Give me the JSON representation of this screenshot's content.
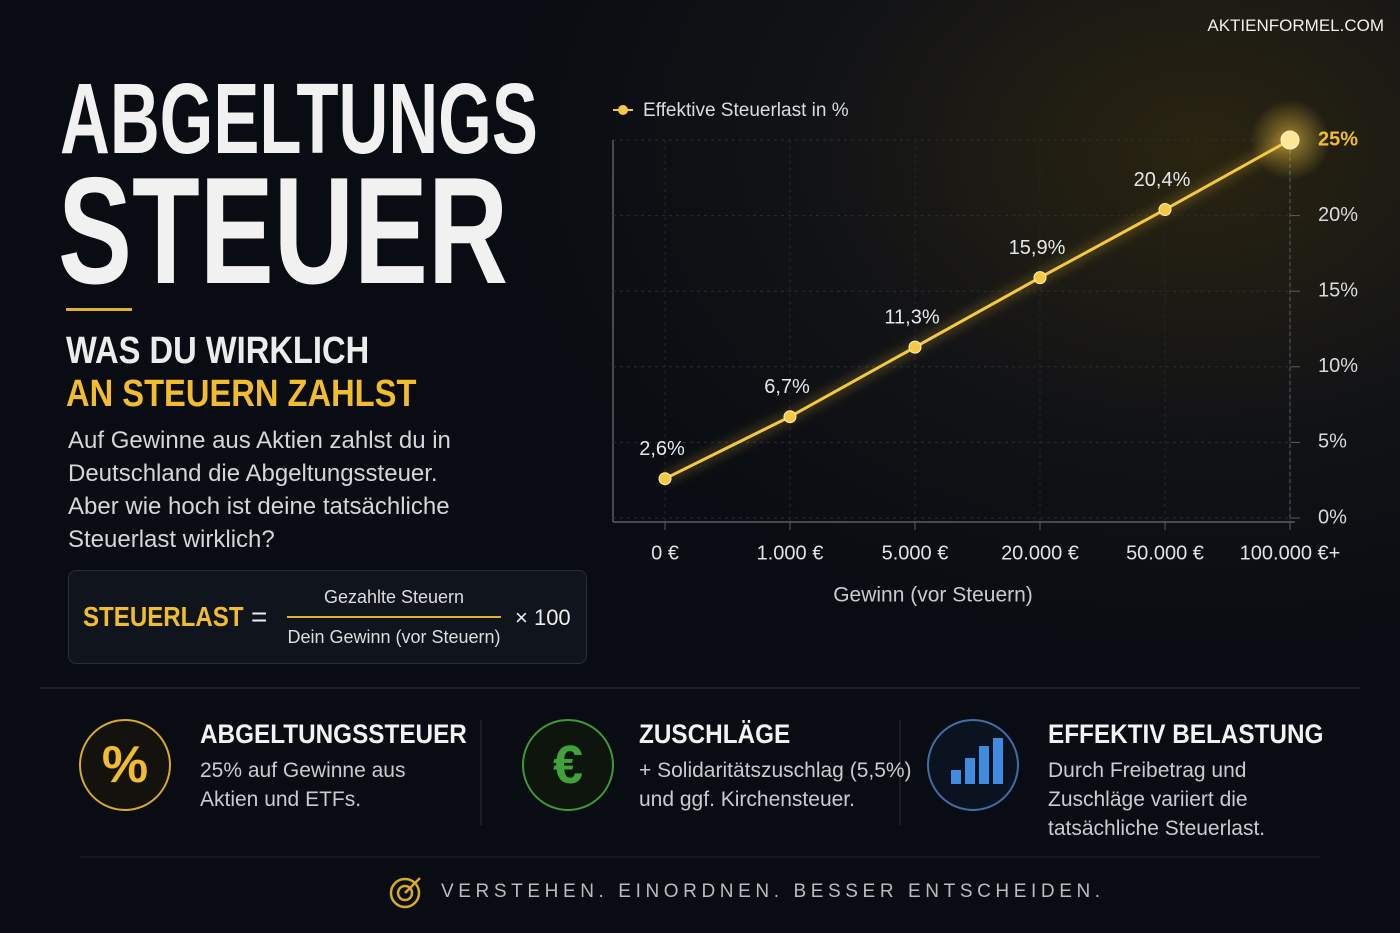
{
  "brand": "AKTIENFORMEL.COM",
  "header": {
    "title_lines": [
      "ABGELTUNGS",
      "STEUER"
    ],
    "subtitle_lines": [
      "WAS DU WIRKLICH",
      "AN STEUERN ZAHLST"
    ],
    "intro_lines": [
      "Auf Gewinne aus Aktien zahlst du in",
      "Deutschland die Abgeltungssteuer.",
      "Aber wie hoch ist deine tatsächliche",
      "Steuerlast wirklich?"
    ]
  },
  "formula": {
    "label": "STEUERLAST",
    "equals": "=",
    "numerator": "Gezahlte Steuern",
    "denominator": "Dein Gewinn (vor Steuern)",
    "factor": "× 100"
  },
  "chart_data": {
    "type": "line",
    "x_label": "Gewinn (vor Steuern)",
    "categories": [
      "0 €",
      "1.000 €",
      "5.000 €",
      "20.000 €",
      "50.000 €",
      "100.000 €+"
    ],
    "series": [
      {
        "name": "Effektive Steuerlast in %",
        "color": "#f5c842",
        "values": [
          2.6,
          6.7,
          11.3,
          15.9,
          20.4,
          25
        ],
        "value_labels": [
          "2,6%",
          "6,7%",
          "11,3%",
          "15,9%",
          "20,4%",
          null
        ]
      }
    ],
    "ylim": [
      0,
      25
    ],
    "yticks": [
      {
        "value": 0,
        "label": "0%"
      },
      {
        "value": 5,
        "label": "5%"
      },
      {
        "value": 10,
        "label": "10%"
      },
      {
        "value": 15,
        "label": "15%"
      },
      {
        "value": 20,
        "label": "20%"
      },
      {
        "value": 25,
        "label": "25%"
      }
    ],
    "grid": true,
    "legend": "top-left"
  },
  "cards": [
    {
      "icon": "%",
      "title": "ABGELTUNGSSTEUER",
      "lines": [
        "25% auf Gewinne aus",
        "Aktien und ETFs."
      ]
    },
    {
      "icon": "€",
      "title": "ZUSCHLÄGE",
      "lines": [
        "+ Solidaritätszuschlag (5,5%)",
        "und ggf. Kirchensteuer."
      ]
    },
    {
      "title": "EFFEKTIV BELASTUNG",
      "lines": [
        "Durch Freibetrag und",
        "Zuschläge variiert die",
        "tatsächliche Steuerlast."
      ]
    }
  ],
  "footer": "VERSTEHEN. EINORDNEN. BESSER ENTSCHEIDEN."
}
